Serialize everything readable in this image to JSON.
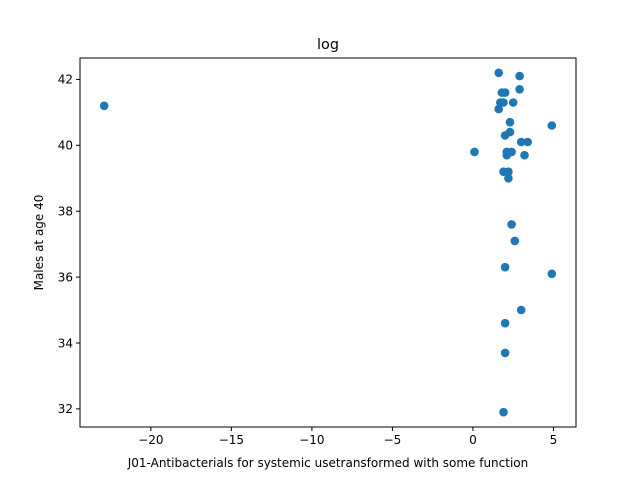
{
  "chart_data": {
    "type": "scatter",
    "title": "log",
    "xlabel": "J01-Antibacterials for systemic usetransformed with some function",
    "ylabel": "Males at age 40",
    "xlim": [
      -24.4,
      6.4
    ],
    "ylim": [
      31.45,
      42.65
    ],
    "xticks": [
      -20,
      -15,
      -10,
      -5,
      0,
      5
    ],
    "xtick_labels": [
      "−20",
      "−15",
      "−10",
      "−5",
      "0",
      "5"
    ],
    "yticks": [
      32,
      34,
      36,
      38,
      40,
      42
    ],
    "ytick_labels": [
      "32",
      "34",
      "36",
      "38",
      "40",
      "42"
    ],
    "grid": false,
    "marker_color": "#1f77b4",
    "points": [
      {
        "x": -22.9,
        "y": 41.2
      },
      {
        "x": 0.1,
        "y": 39.8
      },
      {
        "x": 1.6,
        "y": 42.2
      },
      {
        "x": 1.6,
        "y": 41.1
      },
      {
        "x": 1.7,
        "y": 41.3
      },
      {
        "x": 1.8,
        "y": 41.6
      },
      {
        "x": 1.9,
        "y": 41.3
      },
      {
        "x": 2.0,
        "y": 41.6
      },
      {
        "x": 2.0,
        "y": 40.3
      },
      {
        "x": 1.9,
        "y": 39.2
      },
      {
        "x": 2.0,
        "y": 36.3
      },
      {
        "x": 2.0,
        "y": 34.6
      },
      {
        "x": 2.0,
        "y": 33.7
      },
      {
        "x": 1.9,
        "y": 31.9
      },
      {
        "x": 2.1,
        "y": 39.7
      },
      {
        "x": 2.1,
        "y": 39.8
      },
      {
        "x": 2.2,
        "y": 39.2
      },
      {
        "x": 2.2,
        "y": 39.0
      },
      {
        "x": 2.3,
        "y": 40.7
      },
      {
        "x": 2.3,
        "y": 40.4
      },
      {
        "x": 2.4,
        "y": 39.8
      },
      {
        "x": 2.4,
        "y": 37.6
      },
      {
        "x": 2.5,
        "y": 41.3
      },
      {
        "x": 2.6,
        "y": 37.1
      },
      {
        "x": 2.9,
        "y": 42.1
      },
      {
        "x": 2.9,
        "y": 41.7
      },
      {
        "x": 3.0,
        "y": 40.1
      },
      {
        "x": 3.0,
        "y": 35.0
      },
      {
        "x": 3.2,
        "y": 39.7
      },
      {
        "x": 3.4,
        "y": 40.1
      },
      {
        "x": 4.9,
        "y": 40.6
      },
      {
        "x": 4.9,
        "y": 36.1
      }
    ]
  }
}
